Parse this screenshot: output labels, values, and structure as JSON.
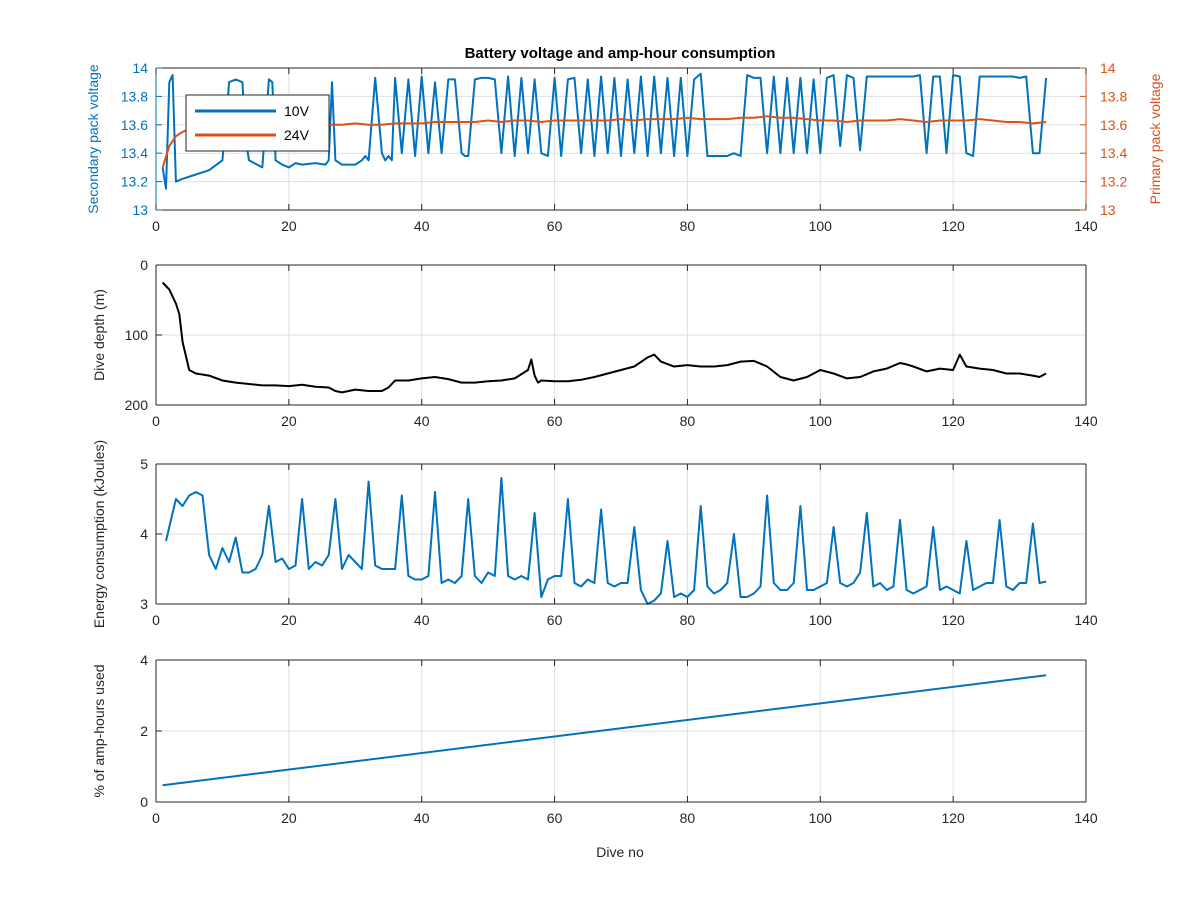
{
  "figure": {
    "title": "Battery voltage and amp-hour consumption",
    "xlabel": "Dive no",
    "colors": {
      "blue": "#0072BD",
      "orange": "#D95319",
      "black": "#000000",
      "axis": "#262626",
      "grid": "#dfdfdf"
    }
  },
  "chart_data": [
    {
      "type": "line",
      "name": "voltage",
      "title": "Battery voltage and amp-hour consumption",
      "ylabel": "Secondary pack voltage",
      "ylabel_right": "Primary pack voltage",
      "xlim": [
        0,
        140
      ],
      "ylim": [
        13,
        14
      ],
      "ylim_right": [
        13,
        14
      ],
      "xticks": [
        0,
        20,
        40,
        60,
        80,
        100,
        120,
        140
      ],
      "yticks": [
        13,
        13.2,
        13.4,
        13.6,
        13.8,
        14
      ],
      "yticks_right": [
        13,
        13.2,
        13.4,
        13.6,
        13.8,
        14
      ],
      "grid": true,
      "legend_position": "top-left",
      "series": [
        {
          "name": "10V",
          "axis": "left",
          "color": "#0072BD",
          "x": [
            1,
            1.5,
            2,
            2.5,
            3,
            4,
            6,
            8,
            10,
            10.5,
            11,
            12,
            13,
            13.5,
            14,
            16,
            17,
            17.5,
            18,
            19,
            20,
            21,
            22,
            24,
            25.5,
            26,
            26.5,
            27,
            28,
            30,
            31,
            31.5,
            32,
            33,
            34,
            34.5,
            35,
            35.5,
            36,
            37,
            38,
            39,
            40,
            41,
            42,
            43,
            44,
            45,
            46,
            46.5,
            47,
            48,
            49,
            50,
            51,
            52,
            53,
            54,
            55,
            56,
            57,
            58,
            59,
            60,
            61,
            62,
            63,
            64,
            65,
            66,
            67,
            68,
            69,
            70,
            71,
            72,
            73,
            74,
            75,
            76,
            77,
            78,
            79,
            80,
            81,
            82,
            83,
            84,
            85,
            86,
            87,
            88,
            89,
            90,
            91,
            92,
            93,
            94,
            95,
            96,
            97,
            98,
            99,
            100,
            101,
            102,
            103,
            104,
            105,
            106,
            107,
            108,
            109,
            110,
            111,
            112,
            113,
            114,
            115,
            116,
            117,
            118,
            119,
            120,
            121,
            122,
            123,
            124,
            125,
            126,
            127,
            128,
            129,
            130,
            131,
            132,
            133,
            134
          ],
          "values": [
            13.3,
            13.15,
            13.9,
            13.95,
            13.2,
            13.22,
            13.25,
            13.28,
            13.35,
            13.6,
            13.9,
            13.92,
            13.9,
            13.5,
            13.35,
            13.3,
            13.92,
            13.9,
            13.35,
            13.32,
            13.3,
            13.33,
            13.32,
            13.33,
            13.32,
            13.35,
            13.9,
            13.35,
            13.32,
            13.32,
            13.35,
            13.38,
            13.35,
            13.93,
            13.4,
            13.35,
            13.38,
            13.35,
            13.93,
            13.4,
            13.92,
            13.38,
            13.94,
            13.4,
            13.9,
            13.4,
            13.92,
            13.92,
            13.4,
            13.38,
            13.38,
            13.92,
            13.93,
            13.93,
            13.92,
            13.4,
            13.94,
            13.38,
            13.93,
            13.4,
            13.92,
            13.4,
            13.38,
            13.93,
            13.38,
            13.92,
            13.93,
            13.4,
            13.92,
            13.38,
            13.94,
            13.4,
            13.93,
            13.38,
            13.92,
            13.4,
            13.94,
            13.38,
            13.94,
            13.4,
            13.93,
            13.38,
            13.93,
            13.38,
            13.92,
            13.96,
            13.38,
            13.38,
            13.38,
            13.38,
            13.4,
            13.38,
            13.95,
            13.93,
            13.93,
            13.4,
            13.94,
            13.4,
            13.93,
            13.4,
            13.93,
            13.4,
            13.92,
            13.4,
            13.93,
            13.95,
            13.45,
            13.95,
            13.93,
            13.42,
            13.94,
            13.94,
            13.94,
            13.94,
            13.94,
            13.94,
            13.94,
            13.94,
            13.95,
            13.4,
            13.94,
            13.94,
            13.4,
            13.95,
            13.94,
            13.4,
            13.38,
            13.94,
            13.94,
            13.94,
            13.94,
            13.94,
            13.94,
            13.93,
            13.94,
            13.4,
            13.4,
            13.93
          ]
        },
        {
          "name": "24V",
          "axis": "right",
          "color": "#D95319",
          "x": [
            1,
            2,
            3,
            4,
            5,
            6,
            8,
            10,
            12,
            14,
            16,
            18,
            20,
            22,
            24,
            26,
            28,
            30,
            32,
            34,
            36,
            38,
            40,
            42,
            44,
            46,
            48,
            50,
            52,
            54,
            56,
            58,
            60,
            62,
            64,
            66,
            68,
            70,
            72,
            74,
            76,
            78,
            80,
            82,
            84,
            86,
            88,
            90,
            92,
            94,
            96,
            98,
            100,
            102,
            104,
            106,
            108,
            110,
            112,
            114,
            116,
            118,
            120,
            122,
            124,
            126,
            128,
            130,
            132,
            134
          ],
          "values": [
            13.3,
            13.45,
            13.52,
            13.55,
            13.57,
            13.58,
            13.58,
            13.59,
            13.6,
            13.6,
            13.59,
            13.6,
            13.6,
            13.6,
            13.61,
            13.6,
            13.6,
            13.61,
            13.6,
            13.6,
            13.61,
            13.61,
            13.61,
            13.62,
            13.62,
            13.62,
            13.62,
            13.63,
            13.62,
            13.63,
            13.63,
            13.62,
            13.63,
            13.63,
            13.63,
            13.63,
            13.63,
            13.64,
            13.63,
            13.64,
            13.64,
            13.64,
            13.65,
            13.64,
            13.64,
            13.64,
            13.65,
            13.65,
            13.66,
            13.65,
            13.65,
            13.64,
            13.63,
            13.63,
            13.62,
            13.63,
            13.63,
            13.63,
            13.64,
            13.63,
            13.62,
            13.63,
            13.63,
            13.63,
            13.64,
            13.63,
            13.62,
            13.62,
            13.61,
            13.62
          ]
        }
      ]
    },
    {
      "type": "line",
      "name": "depth",
      "ylabel": "Dive depth (m)",
      "xlim": [
        0,
        140
      ],
      "ylim": [
        0,
        200
      ],
      "y_reversed": true,
      "xticks": [
        0,
        20,
        40,
        60,
        80,
        100,
        120,
        140
      ],
      "yticks": [
        0,
        100,
        200
      ],
      "grid": true,
      "series": [
        {
          "color": "#000000",
          "x": [
            1,
            2,
            3,
            3.5,
            4,
            4.5,
            5,
            6,
            8,
            10,
            12,
            14,
            16,
            18,
            20,
            22,
            24,
            26,
            27,
            28,
            30,
            32,
            34,
            35,
            36,
            38,
            40,
            42,
            44,
            46,
            48,
            50,
            52,
            54,
            56,
            56.5,
            57,
            57.5,
            58,
            60,
            62,
            64,
            66,
            68,
            70,
            72,
            74,
            75,
            76,
            78,
            80,
            82,
            84,
            86,
            88,
            90,
            92,
            94,
            96,
            98,
            100,
            102,
            104,
            106,
            108,
            110,
            112,
            113,
            114,
            116,
            118,
            120,
            121,
            122,
            124,
            126,
            128,
            130,
            132,
            133,
            134
          ],
          "values": [
            25,
            35,
            55,
            70,
            110,
            130,
            150,
            155,
            158,
            165,
            168,
            170,
            172,
            172,
            173,
            171,
            174,
            175,
            180,
            182,
            178,
            180,
            180,
            175,
            165,
            165,
            162,
            160,
            163,
            168,
            168,
            166,
            165,
            162,
            150,
            135,
            158,
            168,
            165,
            166,
            166,
            164,
            160,
            155,
            150,
            145,
            132,
            128,
            138,
            145,
            143,
            145,
            145,
            143,
            138,
            137,
            145,
            160,
            165,
            160,
            150,
            155,
            162,
            160,
            152,
            148,
            140,
            142,
            145,
            152,
            148,
            150,
            128,
            145,
            148,
            150,
            155,
            155,
            158,
            160,
            155
          ]
        }
      ]
    },
    {
      "type": "line",
      "name": "energy",
      "ylabel": "Energy consumption (kJoules)",
      "xlim": [
        0,
        140
      ],
      "ylim": [
        3,
        5
      ],
      "xticks": [
        0,
        20,
        40,
        60,
        80,
        100,
        120,
        140
      ],
      "yticks": [
        3,
        4,
        5
      ],
      "grid": true,
      "series": [
        {
          "color": "#0072BD",
          "x": [
            1.5,
            3,
            4,
            5,
            6,
            7,
            8,
            9,
            10,
            11,
            12,
            13,
            14,
            15,
            16,
            17,
            18,
            19,
            20,
            21,
            22,
            23,
            24,
            25,
            26,
            27,
            28,
            29,
            30,
            31,
            32,
            33,
            34,
            35,
            36,
            37,
            38,
            39,
            40,
            41,
            42,
            43,
            44,
            45,
            46,
            47,
            48,
            49,
            50,
            51,
            52,
            53,
            54,
            55,
            56,
            57,
            58,
            59,
            60,
            61,
            62,
            63,
            64,
            65,
            66,
            67,
            68,
            69,
            70,
            71,
            72,
            73,
            74,
            75,
            76,
            77,
            78,
            79,
            80,
            81,
            82,
            83,
            84,
            85,
            86,
            87,
            88,
            89,
            90,
            91,
            92,
            93,
            94,
            95,
            96,
            97,
            98,
            99,
            100,
            101,
            102,
            103,
            104,
            105,
            106,
            107,
            108,
            109,
            110,
            111,
            112,
            113,
            114,
            115,
            116,
            117,
            118,
            119,
            120,
            121,
            122,
            123,
            124,
            125,
            126,
            127,
            128,
            129,
            130,
            131,
            132,
            133,
            134
          ],
          "values": [
            3.9,
            4.5,
            4.4,
            4.55,
            4.6,
            4.55,
            3.7,
            3.5,
            3.8,
            3.6,
            3.95,
            3.45,
            3.45,
            3.5,
            3.7,
            4.4,
            3.6,
            3.65,
            3.5,
            3.55,
            4.5,
            3.5,
            3.6,
            3.55,
            3.7,
            4.5,
            3.5,
            3.7,
            3.6,
            3.5,
            4.75,
            3.55,
            3.5,
            3.5,
            3.5,
            4.55,
            3.4,
            3.35,
            3.35,
            3.4,
            4.6,
            3.3,
            3.35,
            3.3,
            3.4,
            4.5,
            3.4,
            3.3,
            3.45,
            3.4,
            4.8,
            3.4,
            3.35,
            3.4,
            3.35,
            4.3,
            3.1,
            3.35,
            3.4,
            3.4,
            4.5,
            3.3,
            3.25,
            3.35,
            3.3,
            4.35,
            3.3,
            3.25,
            3.3,
            3.3,
            4.1,
            3.2,
            3.0,
            3.05,
            3.15,
            3.9,
            3.1,
            3.15,
            3.1,
            3.2,
            4.4,
            3.25,
            3.15,
            3.2,
            3.3,
            4.0,
            3.1,
            3.1,
            3.15,
            3.25,
            4.55,
            3.3,
            3.2,
            3.2,
            3.3,
            4.4,
            3.2,
            3.2,
            3.25,
            3.3,
            4.1,
            3.3,
            3.25,
            3.3,
            3.45,
            4.3,
            3.25,
            3.3,
            3.2,
            3.25,
            4.2,
            3.2,
            3.15,
            3.2,
            3.25,
            4.1,
            3.2,
            3.25,
            3.2,
            3.15,
            3.9,
            3.2,
            3.25,
            3.3,
            3.3,
            4.2,
            3.25,
            3.2,
            3.3,
            3.3,
            4.15,
            3.3,
            3.32
          ]
        }
      ]
    },
    {
      "type": "line",
      "name": "amphours",
      "ylabel": "% of amp-hours used",
      "xlabel": "Dive no",
      "xlim": [
        0,
        140
      ],
      "ylim": [
        0,
        4
      ],
      "xticks": [
        0,
        20,
        40,
        60,
        80,
        100,
        120,
        140
      ],
      "yticks": [
        0,
        2,
        4
      ],
      "grid": true,
      "series": [
        {
          "color": "#0072BD",
          "x": [
            1,
            134
          ],
          "values": [
            0.47,
            3.57
          ]
        }
      ]
    }
  ]
}
